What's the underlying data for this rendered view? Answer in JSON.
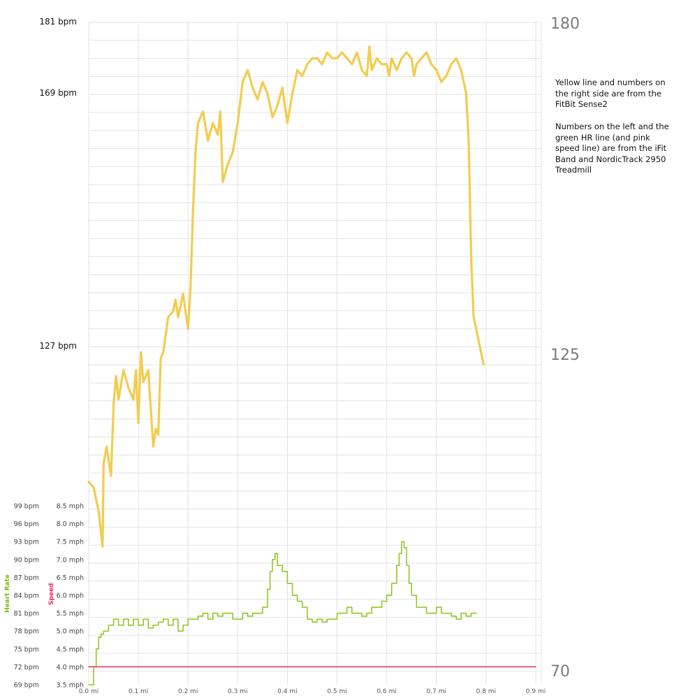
{
  "chart_data": {
    "type": "line",
    "x_unit": "mi",
    "x_ticks": [
      "0.0 mi",
      "0.1 mi",
      "0.2 mi",
      "0.3 mi",
      "0.4 mi",
      "0.5 mi",
      "0.6 mi",
      "0.7 mi",
      "0.8 mi",
      "0.9 mi"
    ],
    "xlim": [
      0.0,
      0.9
    ],
    "left_bpm_labels_top": [
      "181 bpm",
      "169 bpm",
      "127 bpm"
    ],
    "right_bpm_labels": [
      "180",
      "125",
      "70"
    ],
    "heart_rate_ticks": [
      "99 bpm",
      "96 bpm",
      "93 bpm",
      "90 bpm",
      "87 bpm",
      "84 bpm",
      "81 bpm",
      "78 bpm",
      "75 bpm",
      "72 bpm",
      "69 bpm"
    ],
    "speed_ticks": [
      "8.5 mph",
      "8.0 mph",
      "7.5 mph",
      "7.0 mph",
      "6.5 mph",
      "6.0 mph",
      "5.5 mph",
      "5.0 mph",
      "4.5 mph",
      "4.0 mph",
      "3.5 mph"
    ],
    "heart_rate_axis_label": "Heart Rate",
    "speed_axis_label": "Speed",
    "annotation_1": "Yellow line and numbers on the right side are from the FitBit Sense2",
    "annotation_2": "Numbers on the left and the green HR line (and pink speed line) are from the iFit Band and NordicTrack 2950 Treadmill",
    "series": [
      {
        "color": "#f2cc4e",
        "y_unit": "bpm",
        "ylim": [
          70,
          180
        ],
        "points": [
          [
            0.0,
            102
          ],
          [
            0.01,
            101
          ],
          [
            0.02,
            97
          ],
          [
            0.028,
            91
          ],
          [
            0.03,
            105
          ],
          [
            0.036,
            108
          ],
          [
            0.045,
            103
          ],
          [
            0.05,
            115
          ],
          [
            0.055,
            120
          ],
          [
            0.06,
            116
          ],
          [
            0.07,
            121
          ],
          [
            0.08,
            118
          ],
          [
            0.09,
            116
          ],
          [
            0.095,
            121
          ],
          [
            0.1,
            112
          ],
          [
            0.105,
            124
          ],
          [
            0.11,
            119
          ],
          [
            0.12,
            121
          ],
          [
            0.13,
            108
          ],
          [
            0.135,
            111
          ],
          [
            0.14,
            110
          ],
          [
            0.145,
            123
          ],
          [
            0.15,
            124
          ],
          [
            0.16,
            130
          ],
          [
            0.17,
            131
          ],
          [
            0.175,
            133
          ],
          [
            0.18,
            130
          ],
          [
            0.19,
            134
          ],
          [
            0.2,
            128
          ],
          [
            0.205,
            135
          ],
          [
            0.21,
            148
          ],
          [
            0.215,
            158
          ],
          [
            0.22,
            163
          ],
          [
            0.23,
            165
          ],
          [
            0.24,
            160
          ],
          [
            0.25,
            163
          ],
          [
            0.26,
            161
          ],
          [
            0.265,
            165
          ],
          [
            0.27,
            153
          ],
          [
            0.28,
            156
          ],
          [
            0.29,
            158
          ],
          [
            0.3,
            163
          ],
          [
            0.31,
            170
          ],
          [
            0.32,
            172
          ],
          [
            0.33,
            169
          ],
          [
            0.34,
            167
          ],
          [
            0.35,
            170
          ],
          [
            0.36,
            168
          ],
          [
            0.37,
            164
          ],
          [
            0.38,
            166
          ],
          [
            0.39,
            169
          ],
          [
            0.4,
            163
          ],
          [
            0.41,
            168
          ],
          [
            0.42,
            172
          ],
          [
            0.43,
            171
          ],
          [
            0.44,
            173
          ],
          [
            0.45,
            174
          ],
          [
            0.46,
            174
          ],
          [
            0.47,
            173
          ],
          [
            0.48,
            175
          ],
          [
            0.49,
            174
          ],
          [
            0.5,
            174
          ],
          [
            0.51,
            175
          ],
          [
            0.52,
            174
          ],
          [
            0.53,
            173
          ],
          [
            0.54,
            175
          ],
          [
            0.55,
            172
          ],
          [
            0.56,
            171
          ],
          [
            0.565,
            176
          ],
          [
            0.57,
            172
          ],
          [
            0.58,
            174
          ],
          [
            0.59,
            173
          ],
          [
            0.6,
            173
          ],
          [
            0.605,
            171
          ],
          [
            0.61,
            174
          ],
          [
            0.62,
            172
          ],
          [
            0.63,
            174
          ],
          [
            0.64,
            175
          ],
          [
            0.65,
            174
          ],
          [
            0.655,
            171
          ],
          [
            0.66,
            173
          ],
          [
            0.67,
            174
          ],
          [
            0.68,
            175
          ],
          [
            0.69,
            173
          ],
          [
            0.7,
            172
          ],
          [
            0.71,
            170
          ],
          [
            0.72,
            171
          ],
          [
            0.73,
            173
          ],
          [
            0.74,
            174
          ],
          [
            0.75,
            172
          ],
          [
            0.76,
            168
          ],
          [
            0.765,
            160
          ],
          [
            0.77,
            140
          ],
          [
            0.775,
            130
          ],
          [
            0.78,
            128
          ],
          [
            0.785,
            126
          ],
          [
            0.79,
            124
          ],
          [
            0.795,
            122
          ]
        ]
      },
      {
        "color": "#8cc31a",
        "y_unit": "bpm",
        "ylim": [
          69,
          99
        ],
        "points": [
          [
            0.0,
            69
          ],
          [
            0.01,
            72
          ],
          [
            0.015,
            75
          ],
          [
            0.02,
            77
          ],
          [
            0.025,
            77.5
          ],
          [
            0.03,
            78
          ],
          [
            0.04,
            79
          ],
          [
            0.05,
            80
          ],
          [
            0.06,
            79
          ],
          [
            0.07,
            80
          ],
          [
            0.08,
            79
          ],
          [
            0.09,
            80
          ],
          [
            0.1,
            79
          ],
          [
            0.11,
            80
          ],
          [
            0.12,
            78.5
          ],
          [
            0.13,
            79
          ],
          [
            0.14,
            79.5
          ],
          [
            0.15,
            80
          ],
          [
            0.16,
            79
          ],
          [
            0.17,
            80
          ],
          [
            0.18,
            78
          ],
          [
            0.19,
            79
          ],
          [
            0.2,
            80
          ],
          [
            0.21,
            80
          ],
          [
            0.22,
            80.5
          ],
          [
            0.23,
            81
          ],
          [
            0.24,
            80
          ],
          [
            0.25,
            81
          ],
          [
            0.26,
            80.5
          ],
          [
            0.27,
            81
          ],
          [
            0.28,
            81
          ],
          [
            0.29,
            80
          ],
          [
            0.3,
            80
          ],
          [
            0.31,
            81
          ],
          [
            0.32,
            80.5
          ],
          [
            0.33,
            81
          ],
          [
            0.34,
            81
          ],
          [
            0.35,
            82
          ],
          [
            0.36,
            85
          ],
          [
            0.365,
            88
          ],
          [
            0.37,
            90
          ],
          [
            0.375,
            91
          ],
          [
            0.38,
            89
          ],
          [
            0.39,
            88
          ],
          [
            0.4,
            86
          ],
          [
            0.41,
            84
          ],
          [
            0.42,
            83
          ],
          [
            0.43,
            82
          ],
          [
            0.44,
            80
          ],
          [
            0.45,
            79.5
          ],
          [
            0.46,
            80
          ],
          [
            0.47,
            79.5
          ],
          [
            0.48,
            80
          ],
          [
            0.49,
            80
          ],
          [
            0.5,
            81
          ],
          [
            0.51,
            81
          ],
          [
            0.52,
            82
          ],
          [
            0.53,
            81
          ],
          [
            0.54,
            81
          ],
          [
            0.55,
            80.5
          ],
          [
            0.56,
            81
          ],
          [
            0.57,
            82
          ],
          [
            0.58,
            82
          ],
          [
            0.59,
            83
          ],
          [
            0.6,
            84
          ],
          [
            0.61,
            86
          ],
          [
            0.62,
            89
          ],
          [
            0.625,
            91
          ],
          [
            0.63,
            93
          ],
          [
            0.635,
            92
          ],
          [
            0.64,
            89
          ],
          [
            0.645,
            86
          ],
          [
            0.65,
            84
          ],
          [
            0.66,
            82
          ],
          [
            0.67,
            82
          ],
          [
            0.68,
            81
          ],
          [
            0.69,
            81
          ],
          [
            0.7,
            82
          ],
          [
            0.71,
            81
          ],
          [
            0.72,
            81
          ],
          [
            0.73,
            80.5
          ],
          [
            0.74,
            80
          ],
          [
            0.75,
            81
          ],
          [
            0.76,
            80.5
          ],
          [
            0.77,
            81
          ],
          [
            0.78,
            81
          ]
        ]
      },
      {
        "color": "#e8275e",
        "y_unit": "mph",
        "ylim": [
          3.5,
          8.5
        ],
        "points": [
          [
            0.0,
            4.0
          ],
          [
            0.9,
            4.0
          ]
        ]
      }
    ]
  }
}
